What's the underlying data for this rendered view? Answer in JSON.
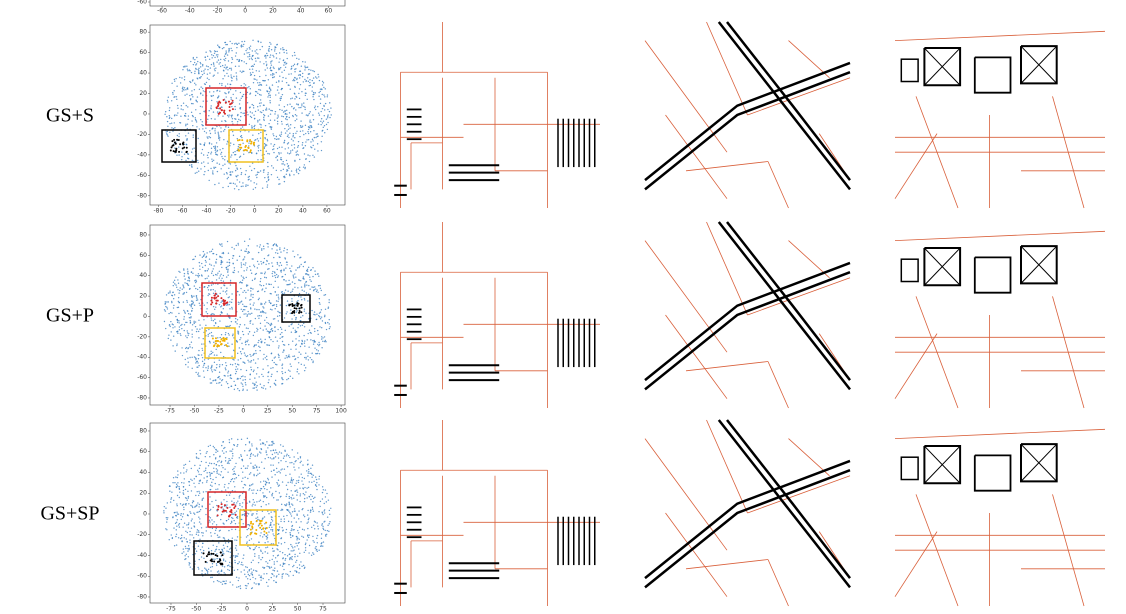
{
  "figure": {
    "top_partial": {
      "xlim": [
        -68.7,
        72
      ],
      "xticks": [
        -60,
        -40,
        -20,
        0,
        20,
        40,
        60
      ],
      "yticks": [
        -60
      ]
    },
    "rows": [
      {
        "label": "GS+S",
        "xlim": [
          -87,
          75
        ],
        "ylim": [
          -89,
          87
        ],
        "xticks": [
          -80,
          -60,
          -40,
          -20,
          0,
          20,
          40,
          60
        ],
        "yticks": [
          80,
          60,
          40,
          20,
          0,
          -20,
          -40,
          -60,
          -80
        ]
      },
      {
        "label": "GS+P",
        "xlim": [
          -95.5,
          104
        ],
        "ylim": [
          -86.9,
          89.8
        ],
        "xticks": [
          -75,
          -50,
          -25,
          0,
          25,
          50,
          75,
          100
        ],
        "yticks": [
          80,
          60,
          40,
          20,
          0,
          -20,
          -40,
          -60,
          -80
        ]
      },
      {
        "label": "GS+SP",
        "xlim": [
          -95.7,
          96.7
        ],
        "ylim": [
          -85.8,
          87.7
        ],
        "xticks": [
          -75,
          -50,
          -25,
          0,
          25,
          50,
          75
        ],
        "yticks": [
          80,
          60,
          40,
          20,
          0,
          -20,
          -40,
          -60,
          -80
        ]
      }
    ]
  }
}
